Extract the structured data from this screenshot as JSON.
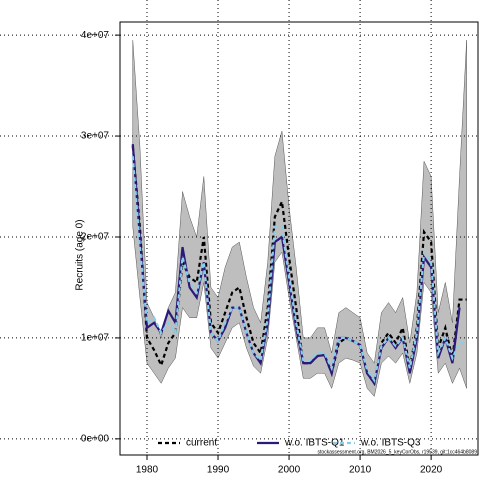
{
  "chart_data": {
    "type": "line",
    "ylabel": "Recruits (age 0)",
    "footnote": "stockassessment.org, BM2026_5_keyCorObs, r19539, git:1cc464b8089",
    "x": [
      1978,
      1979,
      1980,
      1981,
      1982,
      1983,
      1984,
      1985,
      1986,
      1987,
      1988,
      1989,
      1990,
      1991,
      1992,
      1993,
      1994,
      1995,
      1996,
      1997,
      1998,
      1999,
      2000,
      2001,
      2002,
      2003,
      2004,
      2005,
      2006,
      2007,
      2008,
      2009,
      2010,
      2011,
      2012,
      2013,
      2014,
      2015,
      2016,
      2017,
      2018,
      2019,
      2020,
      2021,
      2022,
      2023,
      2024,
      2025
    ],
    "band": {
      "color": "#bebebe",
      "lower": [
        21000000.0,
        14000000.0,
        7500000.0,
        6500000.0,
        5500000.0,
        7000000.0,
        8000000.0,
        13000000.0,
        12000000.0,
        12000000.0,
        15500000.0,
        9000000.0,
        8000000.0,
        9500000.0,
        11000000.0,
        11500000.0,
        9000000.0,
        7200000.0,
        6500000.0,
        10000000.0,
        17500000.0,
        18500000.0,
        14000000.0,
        10000000.0,
        6000000.0,
        6000000.0,
        6500000.0,
        6500000.0,
        5000000.0,
        7500000.0,
        8000000.0,
        7800000.0,
        7500000.0,
        5000000.0,
        4200000.0,
        7500000.0,
        8200000.0,
        7500000.0,
        8500000.0,
        5500000.0,
        8500000.0,
        15500000.0,
        14500000.0,
        6500000.0,
        7500000.0,
        5500000.0,
        7000000.0,
        5000000.0
      ],
      "upper": [
        39500000.0,
        29000000.0,
        13500000.0,
        12000000.0,
        10000000.0,
        13000000.0,
        14500000.0,
        24500000.0,
        22000000.0,
        20000000.0,
        26000000.0,
        15000000.0,
        14000000.0,
        17000000.0,
        19000000.0,
        19500000.0,
        16000000.0,
        13000000.0,
        11500000.0,
        17500000.0,
        28000000.0,
        30500000.0,
        23000000.0,
        17000000.0,
        10000000.0,
        10000000.0,
        11000000.0,
        11000000.0,
        8500000.0,
        12500000.0,
        13000000.0,
        12500000.0,
        12000000.0,
        8500000.0,
        7500000.0,
        12500000.0,
        13500000.0,
        12500000.0,
        14000000.0,
        9500000.0,
        14500000.0,
        27500000.0,
        26000000.0,
        12500000.0,
        15500000.0,
        11500000.0,
        26000000.0,
        39500000.0
      ]
    },
    "series": [
      {
        "name": "current",
        "color": "#000000",
        "linestyle": "dashed",
        "values": [
          29000000.0,
          21000000.0,
          10000000.0,
          8800000.0,
          7300000.0,
          9500000.0,
          10500000.0,
          17500000.0,
          16000000.0,
          15500000.0,
          20000000.0,
          11500000.0,
          10500000.0,
          12500000.0,
          14500000.0,
          15000000.0,
          12000000.0,
          9500000.0,
          8500000.0,
          13000000.0,
          22000000.0,
          23500000.0,
          18000000.0,
          13000000.0,
          7500000.0,
          7500000.0,
          8200000.0,
          8300000.0,
          6500000.0,
          9500000.0,
          10000000.0,
          9700000.0,
          9300000.0,
          6500000.0,
          5500000.0,
          9500000.0,
          10500000.0,
          9500000.0,
          11000000.0,
          7000000.0,
          11000000.0,
          20500000.0,
          19500000.0,
          9000000.0,
          11000000.0,
          8000000.0,
          13800000.0,
          13800000.0
        ]
      },
      {
        "name": "w.o. IBTS-Q1",
        "color": "#2c1a7a",
        "linestyle": "solid",
        "values": [
          29200000.0,
          20000000.0,
          11000000.0,
          11500000.0,
          10500000.0,
          12700000.0,
          11500000.0,
          19000000.0,
          15000000.0,
          14000000.0,
          17500000.0,
          10500000.0,
          9700000.0,
          11000000.0,
          13000000.0,
          13000000.0,
          10500000.0,
          8500000.0,
          7500000.0,
          11500000.0,
          19500000.0,
          20000000.0,
          15500000.0,
          11000000.0,
          7500000.0,
          7500000.0,
          8200000.0,
          8300000.0,
          6500000.0,
          10000000.0,
          10000000.0,
          9700000.0,
          9300000.0,
          6500000.0,
          5500000.0,
          9000000.0,
          10000000.0,
          9000000.0,
          10000000.0,
          6500000.0,
          10000000.0,
          18000000.0,
          17000000.0,
          8000000.0,
          10000000.0,
          7500000.0,
          13000000.0,
          null
        ]
      },
      {
        "name": "w.o. IBTS-Q3",
        "color": "#87ceeb",
        "linestyle": "dashed",
        "values": [
          28000000.0,
          19000000.0,
          11500000.0,
          12000000.0,
          10500000.0,
          11500000.0,
          10500000.0,
          18000000.0,
          15500000.0,
          14500000.0,
          17500000.0,
          10500000.0,
          9700000.0,
          11500000.0,
          13000000.0,
          13000000.0,
          10500000.0,
          8500000.0,
          7800000.0,
          12000000.0,
          21000000.0,
          21000000.0,
          16000000.0,
          11500000.0,
          7800000.0,
          7800000.0,
          8500000.0,
          8500000.0,
          7000000.0,
          10000000.0,
          10000000.0,
          9700000.0,
          9300000.0,
          6800000.0,
          5800000.0,
          9200000.0,
          10000000.0,
          9200000.0,
          10000000.0,
          7000000.0,
          10500000.0,
          18500000.0,
          17500000.0,
          8500000.0,
          10000000.0,
          8000000.0,
          9500000.0,
          9500000.0
        ]
      }
    ],
    "xlim": [
      1976.2,
      2026.6
    ],
    "xticks": [
      1980,
      1990,
      2000,
      2010,
      2020
    ],
    "ylim": [
      -1600000.0,
      41300000.0
    ],
    "yticks": [
      {
        "value": 0,
        "label": "0e+00"
      },
      {
        "value": 10000000.0,
        "label": "1e+07"
      },
      {
        "value": 20000000.0,
        "label": "2e+07"
      },
      {
        "value": 30000000.0,
        "label": "3e+07"
      },
      {
        "value": 40000000.0,
        "label": "4e+07"
      }
    ],
    "grid": true,
    "legend": "bottom"
  }
}
